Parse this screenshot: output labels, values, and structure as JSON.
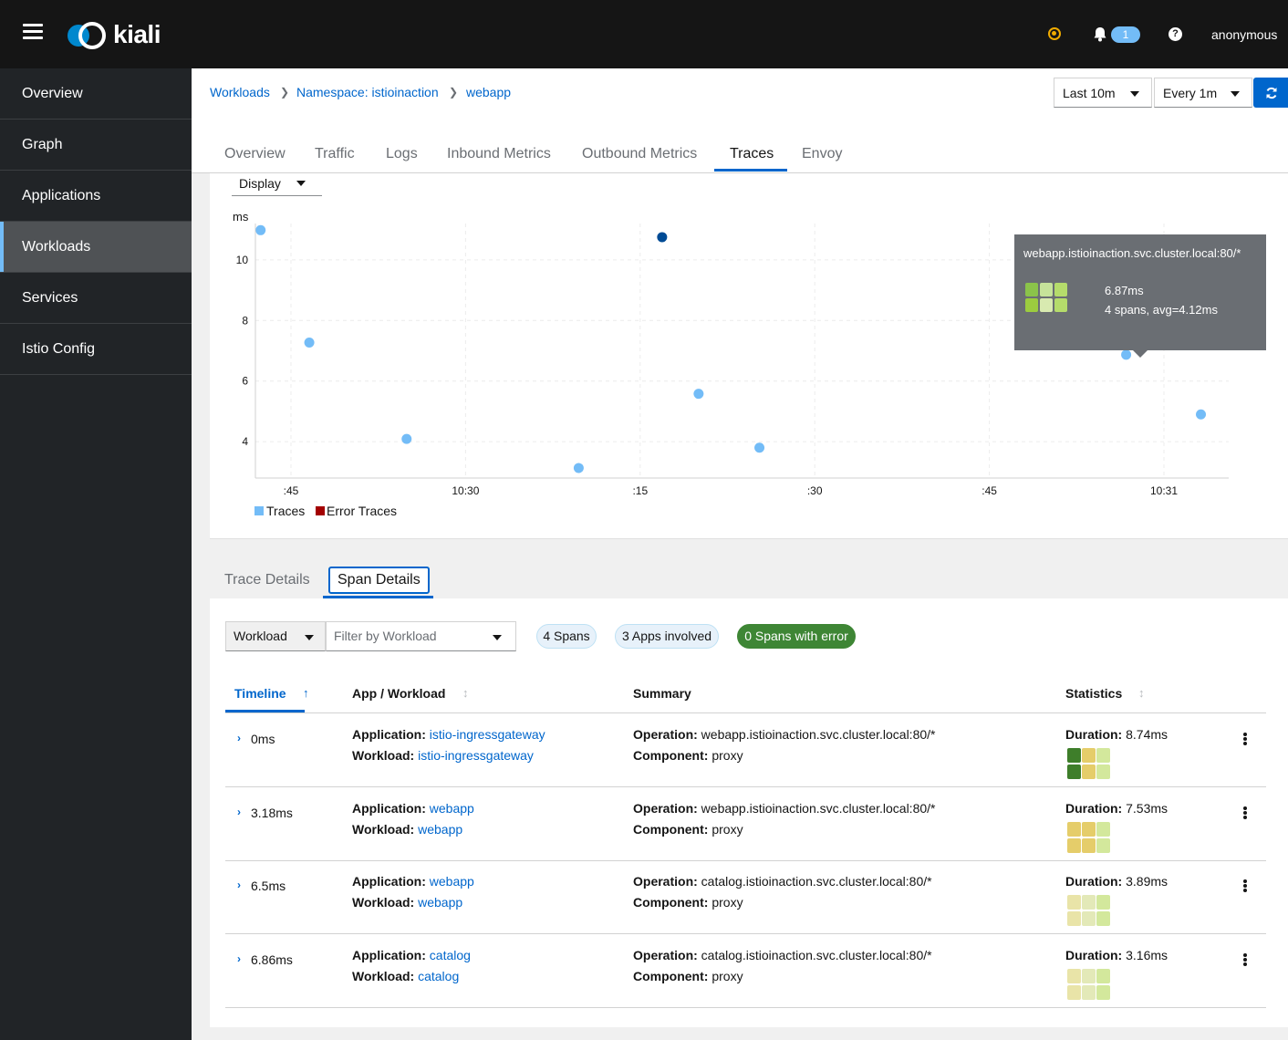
{
  "masthead": {
    "brand": "kiali",
    "notification_count": "1",
    "help_glyph": "?",
    "user": "anonymous",
    "status_color": "#f0ab00"
  },
  "sidebar": {
    "items": [
      {
        "label": "Overview",
        "active": false
      },
      {
        "label": "Graph",
        "active": false
      },
      {
        "label": "Applications",
        "active": false
      },
      {
        "label": "Workloads",
        "active": true
      },
      {
        "label": "Services",
        "active": false
      },
      {
        "label": "Istio Config",
        "active": false
      }
    ]
  },
  "breadcrumb": [
    "Workloads",
    "Namespace: istioinaction",
    "webapp"
  ],
  "controls": {
    "duration": "Last 10m",
    "refresh_interval": "Every 1m"
  },
  "tabs": [
    {
      "label": "Overview"
    },
    {
      "label": "Traffic"
    },
    {
      "label": "Logs"
    },
    {
      "label": "Inbound Metrics"
    },
    {
      "label": "Outbound Metrics"
    },
    {
      "label": "Traces",
      "active": true
    },
    {
      "label": "Envoy"
    }
  ],
  "display_select": "Display",
  "chart_data": {
    "type": "scatter",
    "ylabel": "ms",
    "y_ticks": [
      4,
      6,
      8,
      10
    ],
    "ylim": [
      2.8,
      11.2
    ],
    "x_ticks": [
      ":45",
      "10:30",
      ":15",
      ":30",
      ":45",
      "10:31"
    ],
    "grid": true,
    "legend_position": "bottom-left",
    "series": [
      {
        "name": "Traces",
        "color": "#73bcf7",
        "points": [
          {
            "x": 0.3,
            "y": 10.98
          },
          {
            "x": 3.1,
            "y": 7.27
          },
          {
            "x": 8.7,
            "y": 4.09
          },
          {
            "x": 18.6,
            "y": 3.13
          },
          {
            "x": 23.4,
            "y": 10.75,
            "selected": true
          },
          {
            "x": 25.5,
            "y": 5.58
          },
          {
            "x": 29.0,
            "y": 3.8
          },
          {
            "x": 50.1,
            "y": 6.87
          },
          {
            "x": 54.4,
            "y": 4.9
          }
        ]
      },
      {
        "name": "Error Traces",
        "color": "#a30000",
        "points": []
      }
    ]
  },
  "tooltip": {
    "title": "webapp.istioinaction.svc.cluster.local:80/*",
    "line1": "6.87ms",
    "line2": "4 spans, avg=4.12ms",
    "heatmap": [
      "#8bc34a",
      "#c6e39a",
      "#b5dc6b",
      "#9ccc3f",
      "#d8eab0",
      "#b5dc6b"
    ]
  },
  "detail_tabs": [
    {
      "label": "Trace Details"
    },
    {
      "label": "Span Details",
      "active": true
    }
  ],
  "filters": {
    "type": "Workload",
    "placeholder": "Filter by Workload"
  },
  "chips": {
    "spans": "4 Spans",
    "apps": "3 Apps involved",
    "errors": "0 Spans with error"
  },
  "table": {
    "headers": {
      "timeline": "Timeline",
      "app_workload": "App / Workload",
      "summary": "Summary",
      "statistics": "Statistics"
    },
    "labels": {
      "application": "Application:",
      "workload": "Workload:",
      "operation": "Operation:",
      "component": "Component:",
      "duration": "Duration:"
    },
    "rows": [
      {
        "time": "0ms",
        "application": "istio-ingressgateway",
        "workload": "istio-ingressgateway",
        "operation": "webapp.istioinaction.svc.cluster.local:80/*",
        "component": "proxy",
        "duration": "8.74ms",
        "heatmap": [
          "#3e7e2a",
          "#e5cd6a",
          "#d3e89c",
          "#3e7e2a",
          "#e5cd6a",
          "#d3e89c"
        ]
      },
      {
        "time": "3.18ms",
        "application": "webapp",
        "workload": "webapp",
        "operation": "webapp.istioinaction.svc.cluster.local:80/*",
        "component": "proxy",
        "duration": "7.53ms",
        "heatmap": [
          "#e5cd6a",
          "#e5cd6a",
          "#d3e89c",
          "#e5cd6a",
          "#e5cd6a",
          "#d3e89c"
        ]
      },
      {
        "time": "6.5ms",
        "application": "webapp",
        "workload": "webapp",
        "operation": "catalog.istioinaction.svc.cluster.local:80/*",
        "component": "proxy",
        "duration": "3.89ms",
        "heatmap": [
          "#e9e4a8",
          "#e3e9b8",
          "#d3e89c",
          "#e9e4a8",
          "#e3e9b8",
          "#d3e89c"
        ]
      },
      {
        "time": "6.86ms",
        "application": "catalog",
        "workload": "catalog",
        "operation": "catalog.istioinaction.svc.cluster.local:80/*",
        "component": "proxy",
        "duration": "3.16ms",
        "heatmap": [
          "#e9e4a8",
          "#e3e9b8",
          "#d3e89c",
          "#e9e4a8",
          "#e3e9b8",
          "#d3e89c"
        ]
      }
    ]
  }
}
